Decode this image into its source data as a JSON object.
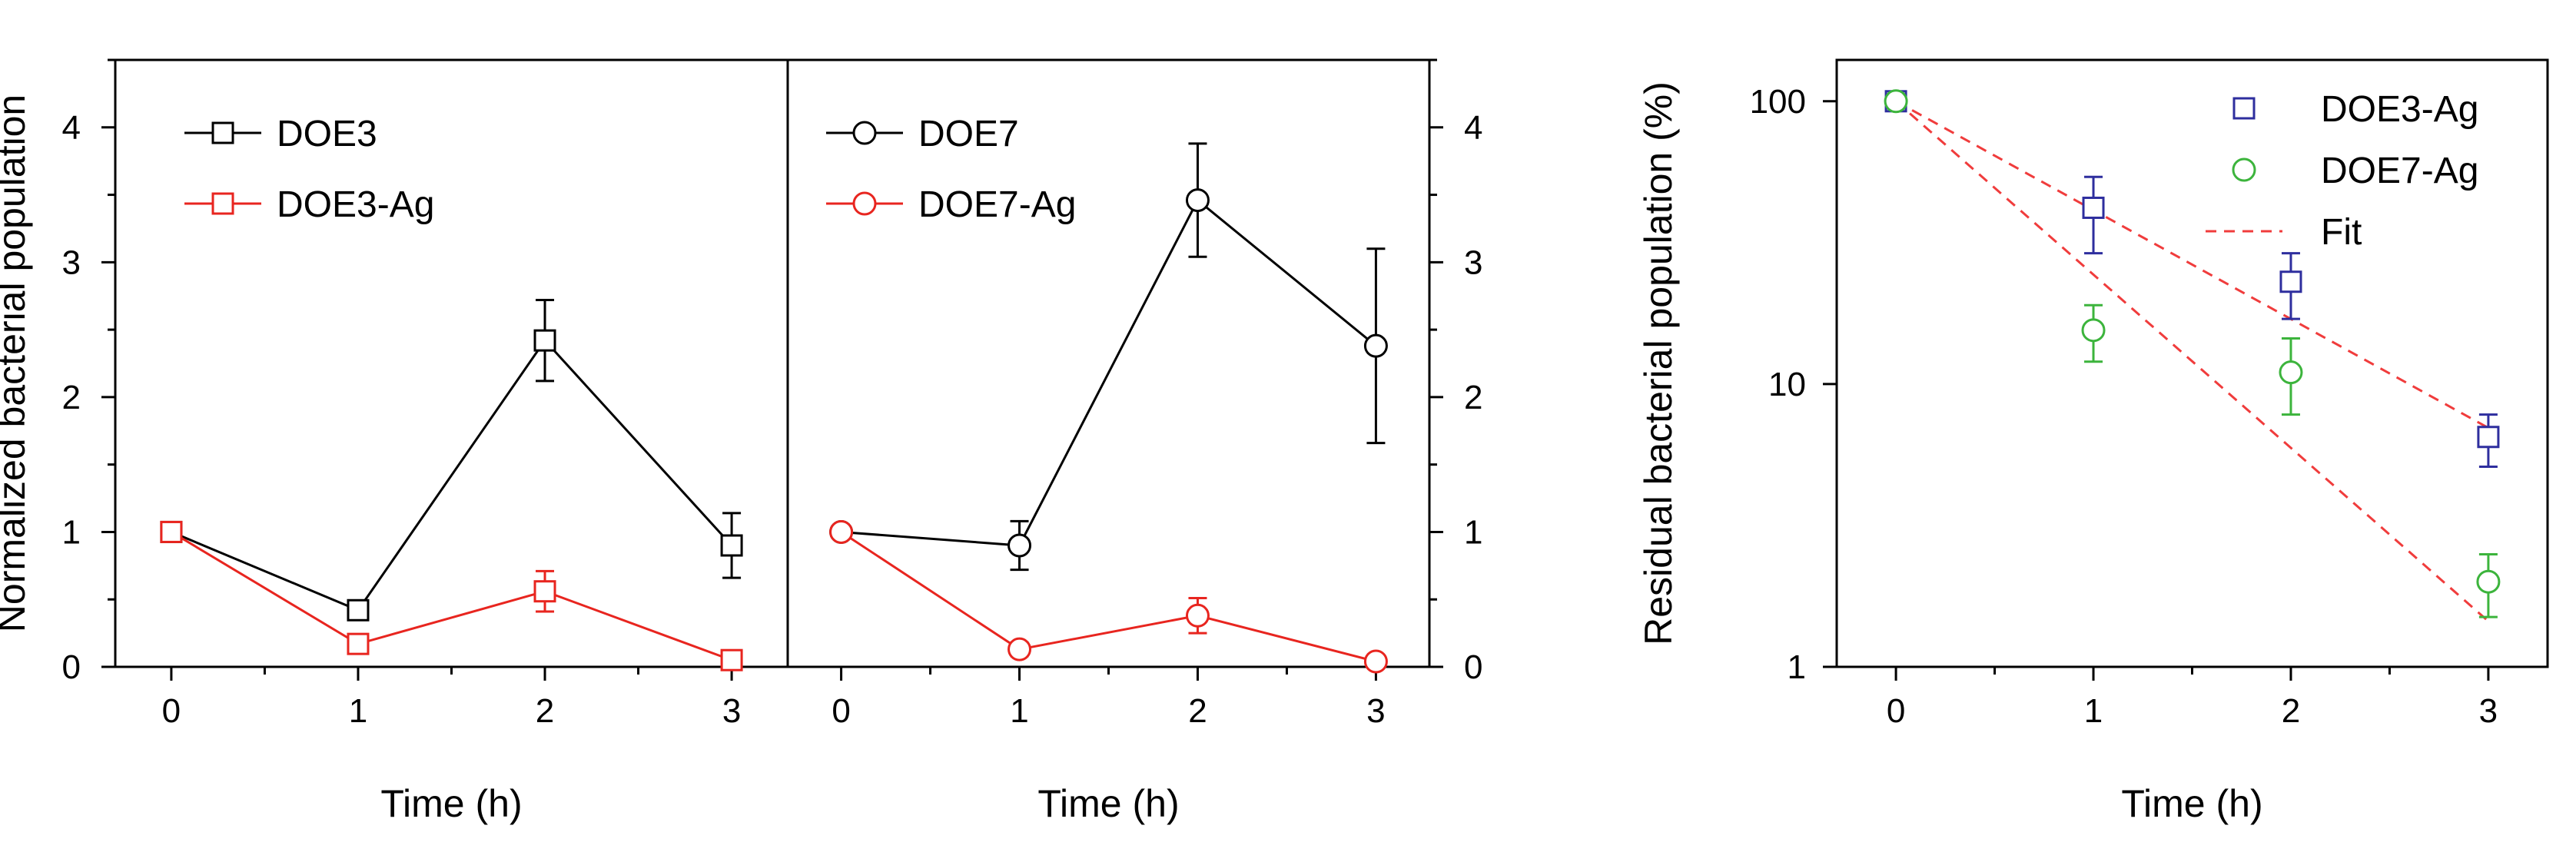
{
  "chart_data": [
    {
      "panel": "left",
      "type": "line",
      "xlabel": "Time (h)",
      "ylabel": "Normalized bacterial population",
      "xlim": [
        -0.3,
        3.3
      ],
      "ylim": [
        0,
        4.5
      ],
      "xticks": [
        0,
        1,
        2,
        3
      ],
      "yticks": [
        0,
        1,
        2,
        3,
        4
      ],
      "series": [
        {
          "name": "DOE3",
          "color": "#000000",
          "marker": "square",
          "x": [
            0,
            1,
            2,
            3
          ],
          "y": [
            1.0,
            0.42,
            2.42,
            0.9
          ],
          "err": [
            0.04,
            0.05,
            0.3,
            0.24
          ]
        },
        {
          "name": "DOE3-Ag",
          "color": "#e8251f",
          "marker": "square",
          "x": [
            0,
            1,
            2,
            3
          ],
          "y": [
            1.0,
            0.17,
            0.56,
            0.05
          ],
          "err": [
            0.04,
            0.05,
            0.15,
            0.04
          ]
        }
      ]
    },
    {
      "panel": "middle",
      "type": "line",
      "xlabel": "Time (h)",
      "ylabel": "",
      "xlim": [
        -0.3,
        3.3
      ],
      "ylim": [
        0,
        4.5
      ],
      "xticks": [
        0,
        1,
        2,
        3
      ],
      "yticks": [
        0,
        1,
        2,
        3,
        4
      ],
      "series": [
        {
          "name": "DOE7",
          "color": "#000000",
          "marker": "circle",
          "x": [
            0,
            1,
            2,
            3
          ],
          "y": [
            1.0,
            0.9,
            3.46,
            2.38
          ],
          "err": [
            0.03,
            0.18,
            0.42,
            0.72
          ]
        },
        {
          "name": "DOE7-Ag",
          "color": "#e8251f",
          "marker": "circle",
          "x": [
            0,
            1,
            2,
            3
          ],
          "y": [
            1.0,
            0.13,
            0.38,
            0.04
          ],
          "err": [
            0.03,
            0.05,
            0.13,
            0.03
          ]
        }
      ]
    },
    {
      "panel": "right",
      "type": "scatter",
      "yscale": "log",
      "xlabel": "Time (h)",
      "ylabel": "Residual bacterial population (%)",
      "xlim": [
        -0.3,
        3.3
      ],
      "ylim": [
        1,
        140
      ],
      "xticks": [
        0,
        1,
        2,
        3
      ],
      "yticks": [
        1,
        10,
        100
      ],
      "series": [
        {
          "name": "DOE3-Ag",
          "color": "#2e2e9e",
          "marker": "square",
          "x": [
            0,
            1,
            2,
            3
          ],
          "y": [
            100,
            42,
            23,
            6.5
          ],
          "err_low": [
            97,
            29,
            17,
            5.1
          ],
          "err_high": [
            103,
            54,
            29,
            7.8
          ]
        },
        {
          "name": "DOE7-Ag",
          "color": "#3cb43c",
          "marker": "circle",
          "x": [
            0,
            1,
            2,
            3
          ],
          "y": [
            100,
            15.5,
            11,
            2.0
          ],
          "err_low": [
            97,
            12,
            7.8,
            1.5
          ],
          "err_high": [
            103,
            19,
            14.5,
            2.5
          ]
        },
        {
          "name": "Fit",
          "color": "#f03c3c",
          "marker": "none",
          "dash": true,
          "fits": [
            {
              "x": [
                0,
                3
              ],
              "y": [
                100,
                7.0
              ]
            },
            {
              "x": [
                0,
                3
              ],
              "y": [
                100,
                1.45
              ]
            }
          ]
        }
      ]
    }
  ]
}
